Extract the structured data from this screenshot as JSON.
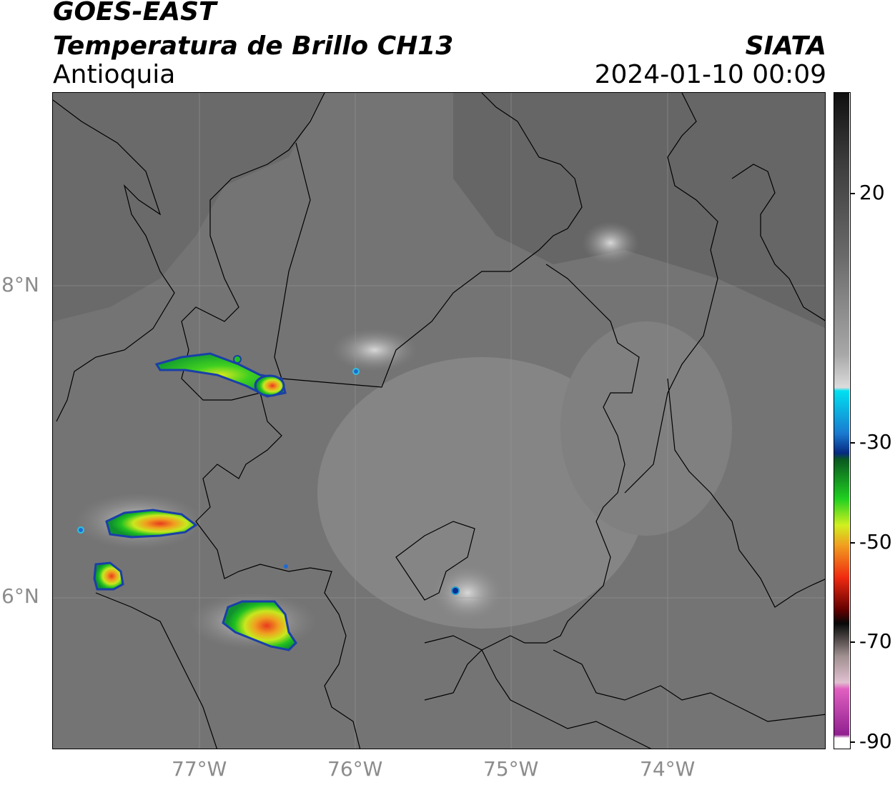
{
  "header": {
    "satellite": "GOES-EAST",
    "product": "Temperatura de Brillo CH13",
    "region": "Antioquia",
    "source": "SIATA",
    "datetime": "2024-01-10 00:09"
  },
  "map": {
    "lat_labels": [
      "8°N",
      "6°N"
    ],
    "lon_labels": [
      "77°W",
      "76°W",
      "75°W",
      "74°W"
    ],
    "grid": true
  },
  "colorbar": {
    "tick_labels": [
      "20",
      "-30",
      "-50",
      "-70",
      "-90"
    ],
    "tick_values": [
      20,
      -30,
      -50,
      -70,
      -90
    ],
    "range": [
      -90,
      40
    ]
  },
  "colors": {
    "background_gray": "#7a7a7a",
    "land_dark": "#5e5e5e",
    "cold_cloud_green": "#22c422",
    "hot_core_red": "#e8321e",
    "outline_blue": "#1a3fa8"
  }
}
